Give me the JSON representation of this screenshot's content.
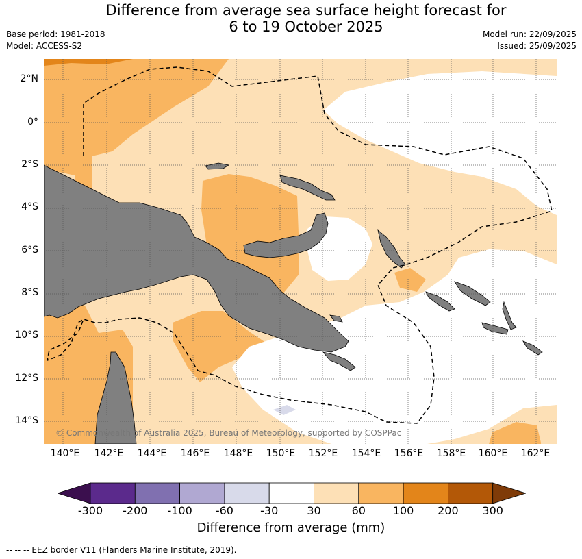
{
  "title_line1": "Difference from average sea surface height forecast for",
  "title_line2": "6 to 19 October 2025",
  "base_period": "Base period: 1981-2018",
  "model": "Model: ACCESS-S2",
  "model_run": "Model run: 22/09/2025",
  "issued": "Issued: 25/09/2025",
  "copyright": "© Commonwealth of Australia 2025, Bureau of Meteorology, supported by COSPPac",
  "lon_labels": [
    "140°E",
    "142°E",
    "144°E",
    "146°E",
    "148°E",
    "150°E",
    "152°E",
    "154°E",
    "156°E",
    "158°E",
    "160°E",
    "162°E"
  ],
  "lat_labels": [
    "2°N",
    "0°",
    "2°S",
    "4°S",
    "6°S",
    "8°S",
    "10°S",
    "12°S",
    "14°S"
  ],
  "colorbar": {
    "title": "Difference from average (mm)",
    "ticks": [
      "-300",
      "-200",
      "-100",
      "-60",
      "-30",
      "30",
      "60",
      "100",
      "200",
      "300"
    ],
    "colors": [
      "#3b0f4e",
      "#5b2a8c",
      "#8070b0",
      "#b0a8d2",
      "#d8daea",
      "#ffffff",
      "#fde0b6",
      "#f9b560",
      "#e3851a",
      "#b35807",
      "#7f3b08"
    ]
  },
  "footnote": "-- -- -- EEZ border V11 (Flanders Marine Institute, 2019).",
  "colors": {
    "land": "#808080",
    "ocean_default": "#fde0b6"
  }
}
